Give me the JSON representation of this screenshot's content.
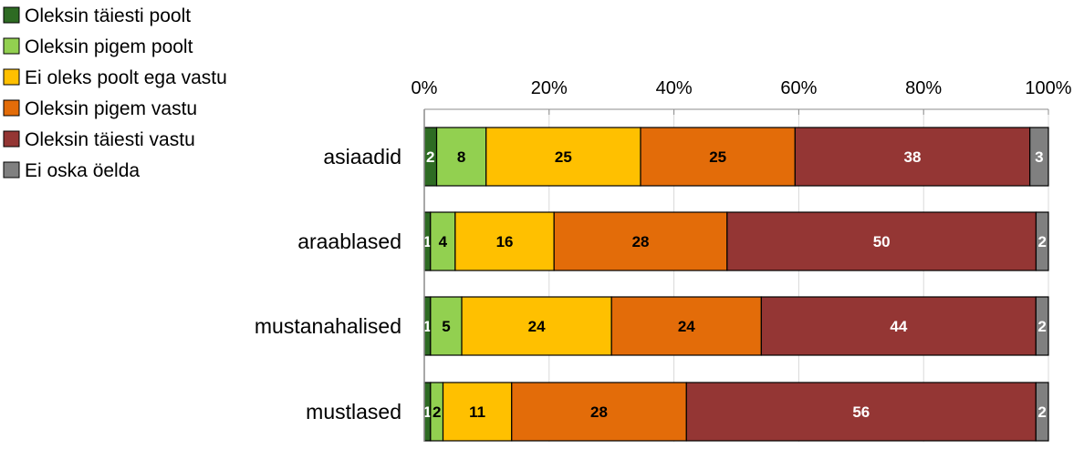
{
  "chart_data": {
    "type": "bar",
    "orientation": "horizontal",
    "stacked": "percent",
    "categories": [
      "asiaadid",
      "araablased",
      "mustanahalised",
      "mustlased"
    ],
    "series": [
      {
        "name": "Oleksin täiesti poolt",
        "color": "#2e6b23",
        "values": [
          2,
          1,
          1,
          1
        ],
        "label_color": "#ffffff"
      },
      {
        "name": "Oleksin pigem poolt",
        "color": "#92d050",
        "values": [
          8,
          4,
          5,
          2
        ],
        "label_color": "#000000"
      },
      {
        "name": "Ei oleks poolt ega vastu",
        "color": "#ffc000",
        "values": [
          25,
          16,
          24,
          11
        ],
        "label_color": "#000000"
      },
      {
        "name": "Oleksin pigem vastu",
        "color": "#e36c09",
        "values": [
          25,
          28,
          24,
          28
        ],
        "label_color": "#000000"
      },
      {
        "name": "Oleksin täiesti vastu",
        "color": "#943634",
        "values": [
          38,
          50,
          44,
          56
        ],
        "label_color": "#ffffff"
      },
      {
        "name": "Ei oska öelda",
        "color": "#808080",
        "values": [
          3,
          2,
          2,
          2
        ],
        "label_color": "#ffffff"
      }
    ],
    "xlim": [
      0,
      100
    ],
    "x_ticks": [
      "0%",
      "20%",
      "40%",
      "60%",
      "80%",
      "100%"
    ],
    "title": "",
    "xlabel": "",
    "ylabel": "",
    "legend": "top-left",
    "grid": true
  }
}
